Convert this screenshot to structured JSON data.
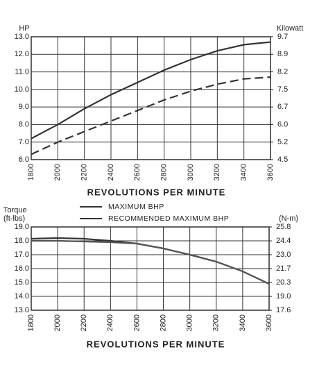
{
  "chart_data": [
    {
      "type": "line",
      "xlabel": "REVOLUTIONS PER MINUTE",
      "ylabel": [
        "HP"
      ],
      "y2label": "Kilowatt",
      "x": [
        1800,
        2000,
        2200,
        2400,
        2600,
        2800,
        3000,
        3200,
        3400,
        3600
      ],
      "xlim": [
        1800,
        3600
      ],
      "xticks": [
        1800,
        2000,
        2200,
        2400,
        2600,
        2800,
        3000,
        3200,
        3400,
        3600
      ],
      "ylim": [
        6,
        13
      ],
      "yticks": [
        {
          "value": 6,
          "label": "6.0"
        },
        {
          "value": 7,
          "label": "7.0"
        },
        {
          "value": 8,
          "label": "8.0"
        },
        {
          "value": 9,
          "label": "9.0"
        },
        {
          "value": 10,
          "label": "10.0"
        },
        {
          "value": 11,
          "label": "11.0"
        },
        {
          "value": 12,
          "label": "12.0"
        },
        {
          "value": 13,
          "label": "13.0"
        }
      ],
      "y2lim": [
        4.474,
        9.694
      ],
      "y2ticks": [
        {
          "value": 4.474,
          "label": "4.5"
        },
        {
          "value": 5.22,
          "label": "5.2"
        },
        {
          "value": 5.966,
          "label": "6.0"
        },
        {
          "value": 6.711,
          "label": "6.7"
        },
        {
          "value": 7.457,
          "label": "7.5"
        },
        {
          "value": 8.203,
          "label": "8.2"
        },
        {
          "value": 8.948,
          "label": "8.9"
        },
        {
          "value": 9.694,
          "label": "9.7"
        }
      ],
      "grid": true,
      "series": [
        {
          "name": "MAXIMUM BHP",
          "color": "#333333",
          "dash": false,
          "values": [
            7.2,
            8.0,
            8.9,
            9.7,
            10.4,
            11.1,
            11.7,
            12.2,
            12.55,
            12.7
          ]
        },
        {
          "name": "RECOMMENDED MAXIMUM BHP",
          "color": "#333333",
          "dash": true,
          "values": [
            6.3,
            7.0,
            7.6,
            8.2,
            8.8,
            9.4,
            9.9,
            10.3,
            10.6,
            10.7
          ]
        }
      ]
    },
    {
      "type": "line",
      "xlabel": "REVOLUTIONS PER MINUTE",
      "ylabel": [
        "Torque",
        "(ft-lbs)"
      ],
      "y2label": "(N-m)",
      "x": [
        1800,
        2000,
        2200,
        2400,
        2600,
        2800,
        3000,
        3200,
        3400,
        3600
      ],
      "xlim": [
        1800,
        3600
      ],
      "xticks": [
        1800,
        2000,
        2200,
        2400,
        2600,
        2800,
        3000,
        3200,
        3400,
        3600
      ],
      "ylim": [
        13,
        19
      ],
      "yticks": [
        {
          "value": 13,
          "label": "13.0"
        },
        {
          "value": 14,
          "label": "14.0"
        },
        {
          "value": 15,
          "label": "15.0"
        },
        {
          "value": 16,
          "label": "16.0"
        },
        {
          "value": 17,
          "label": "17.0"
        },
        {
          "value": 18,
          "label": "18.0"
        },
        {
          "value": 19,
          "label": "19.0"
        }
      ],
      "y2lim": [
        17.63,
        25.76
      ],
      "y2ticks": [
        {
          "value": 17.63,
          "label": "17.6"
        },
        {
          "value": 18.98,
          "label": "19.0"
        },
        {
          "value": 20.34,
          "label": "20.3"
        },
        {
          "value": 21.69,
          "label": "21.7"
        },
        {
          "value": 23.049,
          "label": "23.0"
        },
        {
          "value": 24.4,
          "label": "24.4"
        },
        {
          "value": 25.76,
          "label": "25.8"
        }
      ],
      "grid": true,
      "series": [
        {
          "color": "#333333",
          "dash": false,
          "values": [
            18.15,
            18.2,
            18.15,
            18.0,
            17.8,
            17.45,
            17.0,
            16.5,
            15.8,
            14.9
          ]
        },
        {
          "color": "#555555",
          "dash": false,
          "values": [
            18.0,
            18.0,
            17.95,
            17.9,
            17.8,
            17.45,
            17.0,
            16.5,
            15.8,
            14.9
          ]
        }
      ]
    }
  ]
}
